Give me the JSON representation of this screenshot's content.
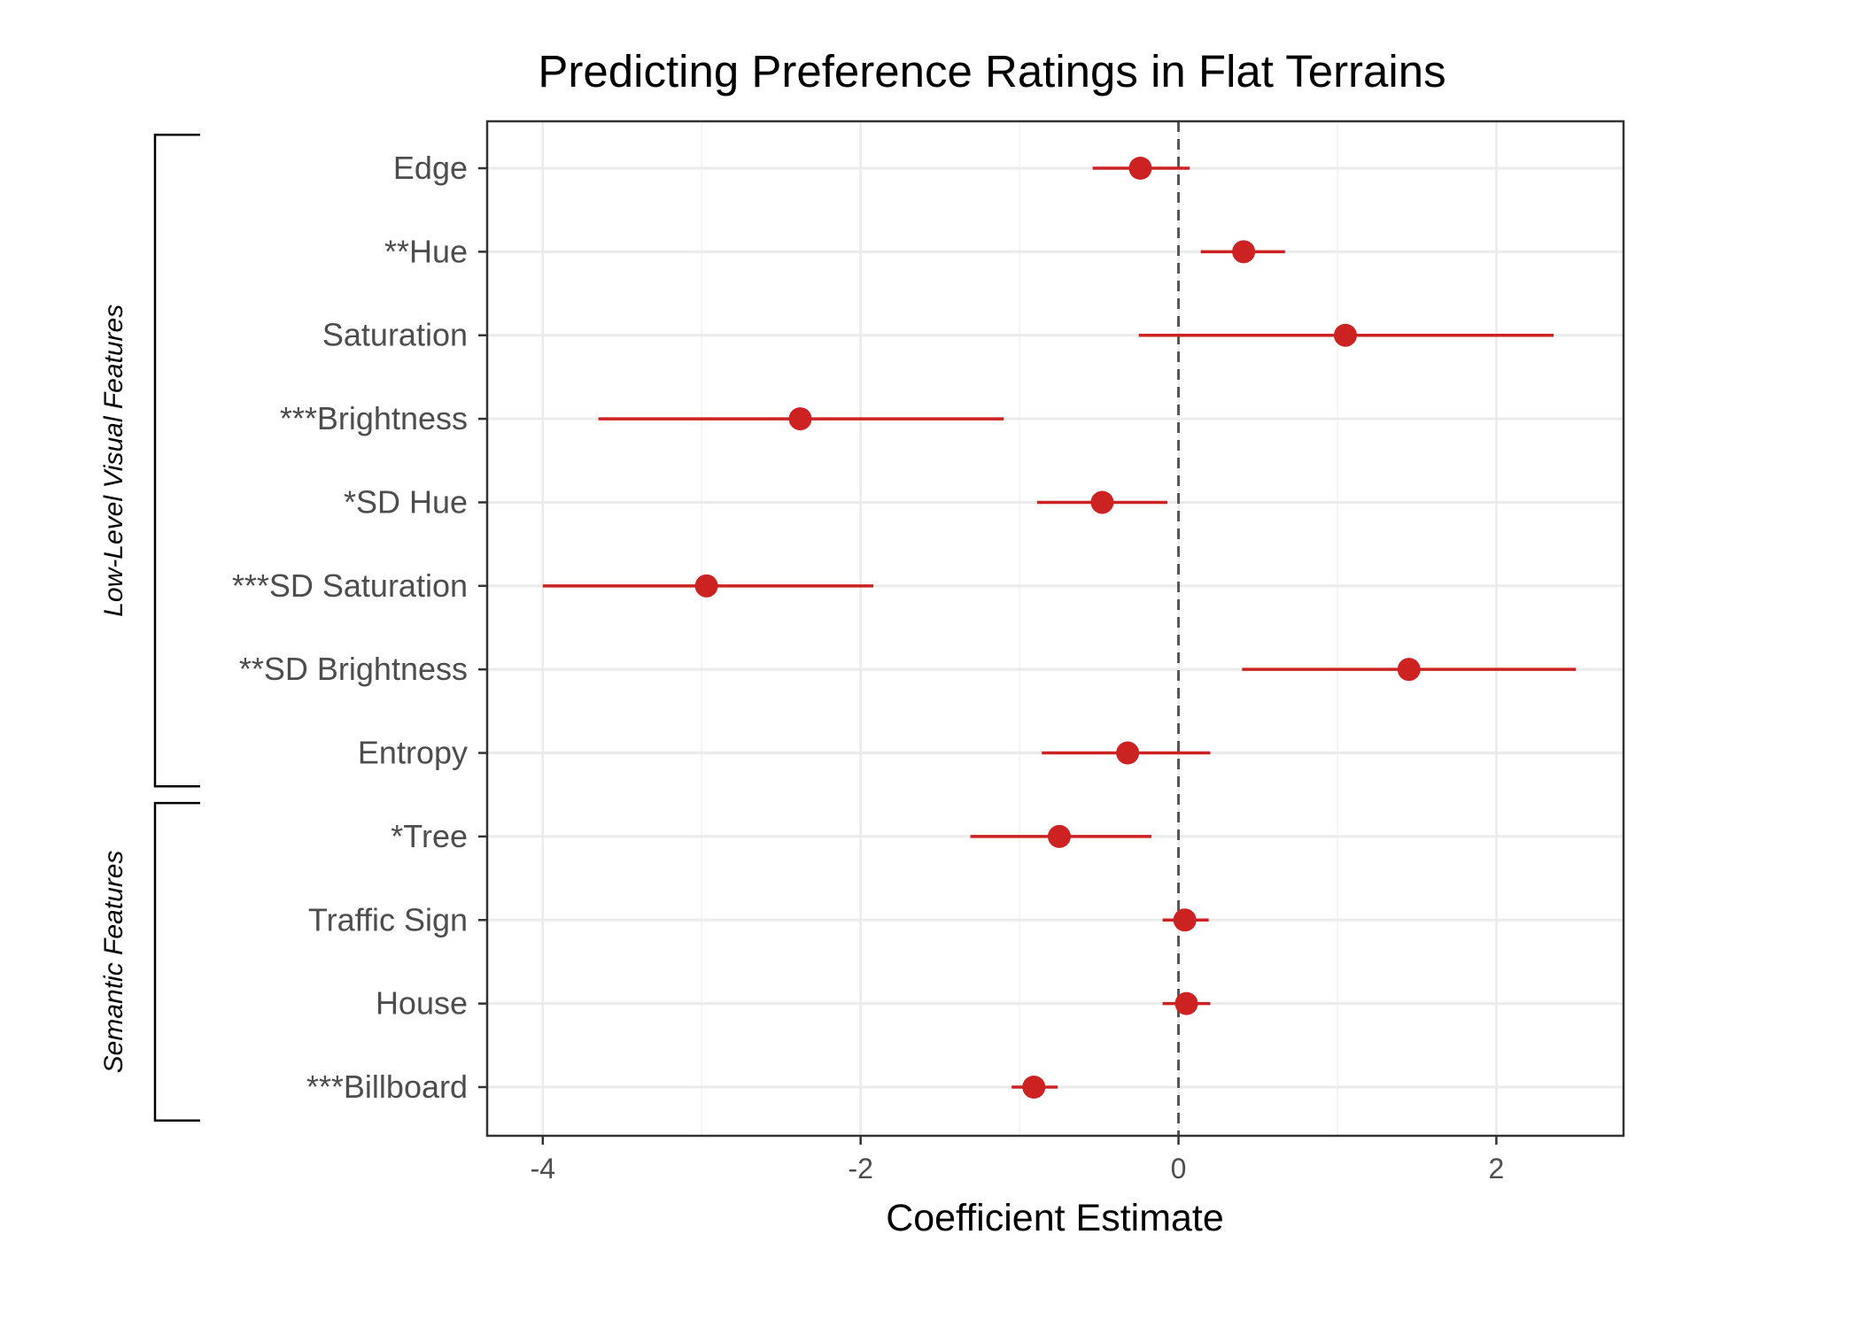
{
  "chart_data": {
    "type": "scatter",
    "title": "Predicting Preference Ratings in Flat Terrains",
    "xlabel": "Coefficient Estimate",
    "ylabel": "",
    "xlim": [
      -4.35,
      2.8
    ],
    "xticks": [
      -4,
      -2,
      0,
      2
    ],
    "xtick_labels": [
      "-4",
      "-2",
      "0",
      "2"
    ],
    "grid": true,
    "reference_line": {
      "x": 0,
      "style": "dashed",
      "color": "#555555"
    },
    "point_color": "#cc2222",
    "categories": [
      "Edge",
      "**Hue",
      "Saturation",
      "***Brightness",
      "*SD Hue",
      "***SD Saturation",
      "**SD Brightness",
      "Entropy",
      "*Tree",
      "Traffic Sign",
      "House",
      "***Billboard"
    ],
    "estimates": [
      -0.24,
      0.41,
      1.05,
      -2.38,
      -0.48,
      -2.97,
      1.45,
      -0.32,
      -0.75,
      0.04,
      0.05,
      -0.91
    ],
    "ci_low": [
      -0.54,
      0.14,
      -0.25,
      -3.65,
      -0.89,
      -4.0,
      0.4,
      -0.86,
      -1.31,
      -0.1,
      -0.1,
      -1.05
    ],
    "ci_high": [
      0.07,
      0.67,
      2.36,
      -1.1,
      -0.07,
      -1.92,
      2.5,
      0.2,
      -0.17,
      0.19,
      0.2,
      -0.76
    ],
    "groups": [
      {
        "label": "Low-Level Visual Features",
        "from": 0,
        "to": 7
      },
      {
        "label": "Semantic Features",
        "from": 8,
        "to": 11
      }
    ]
  }
}
